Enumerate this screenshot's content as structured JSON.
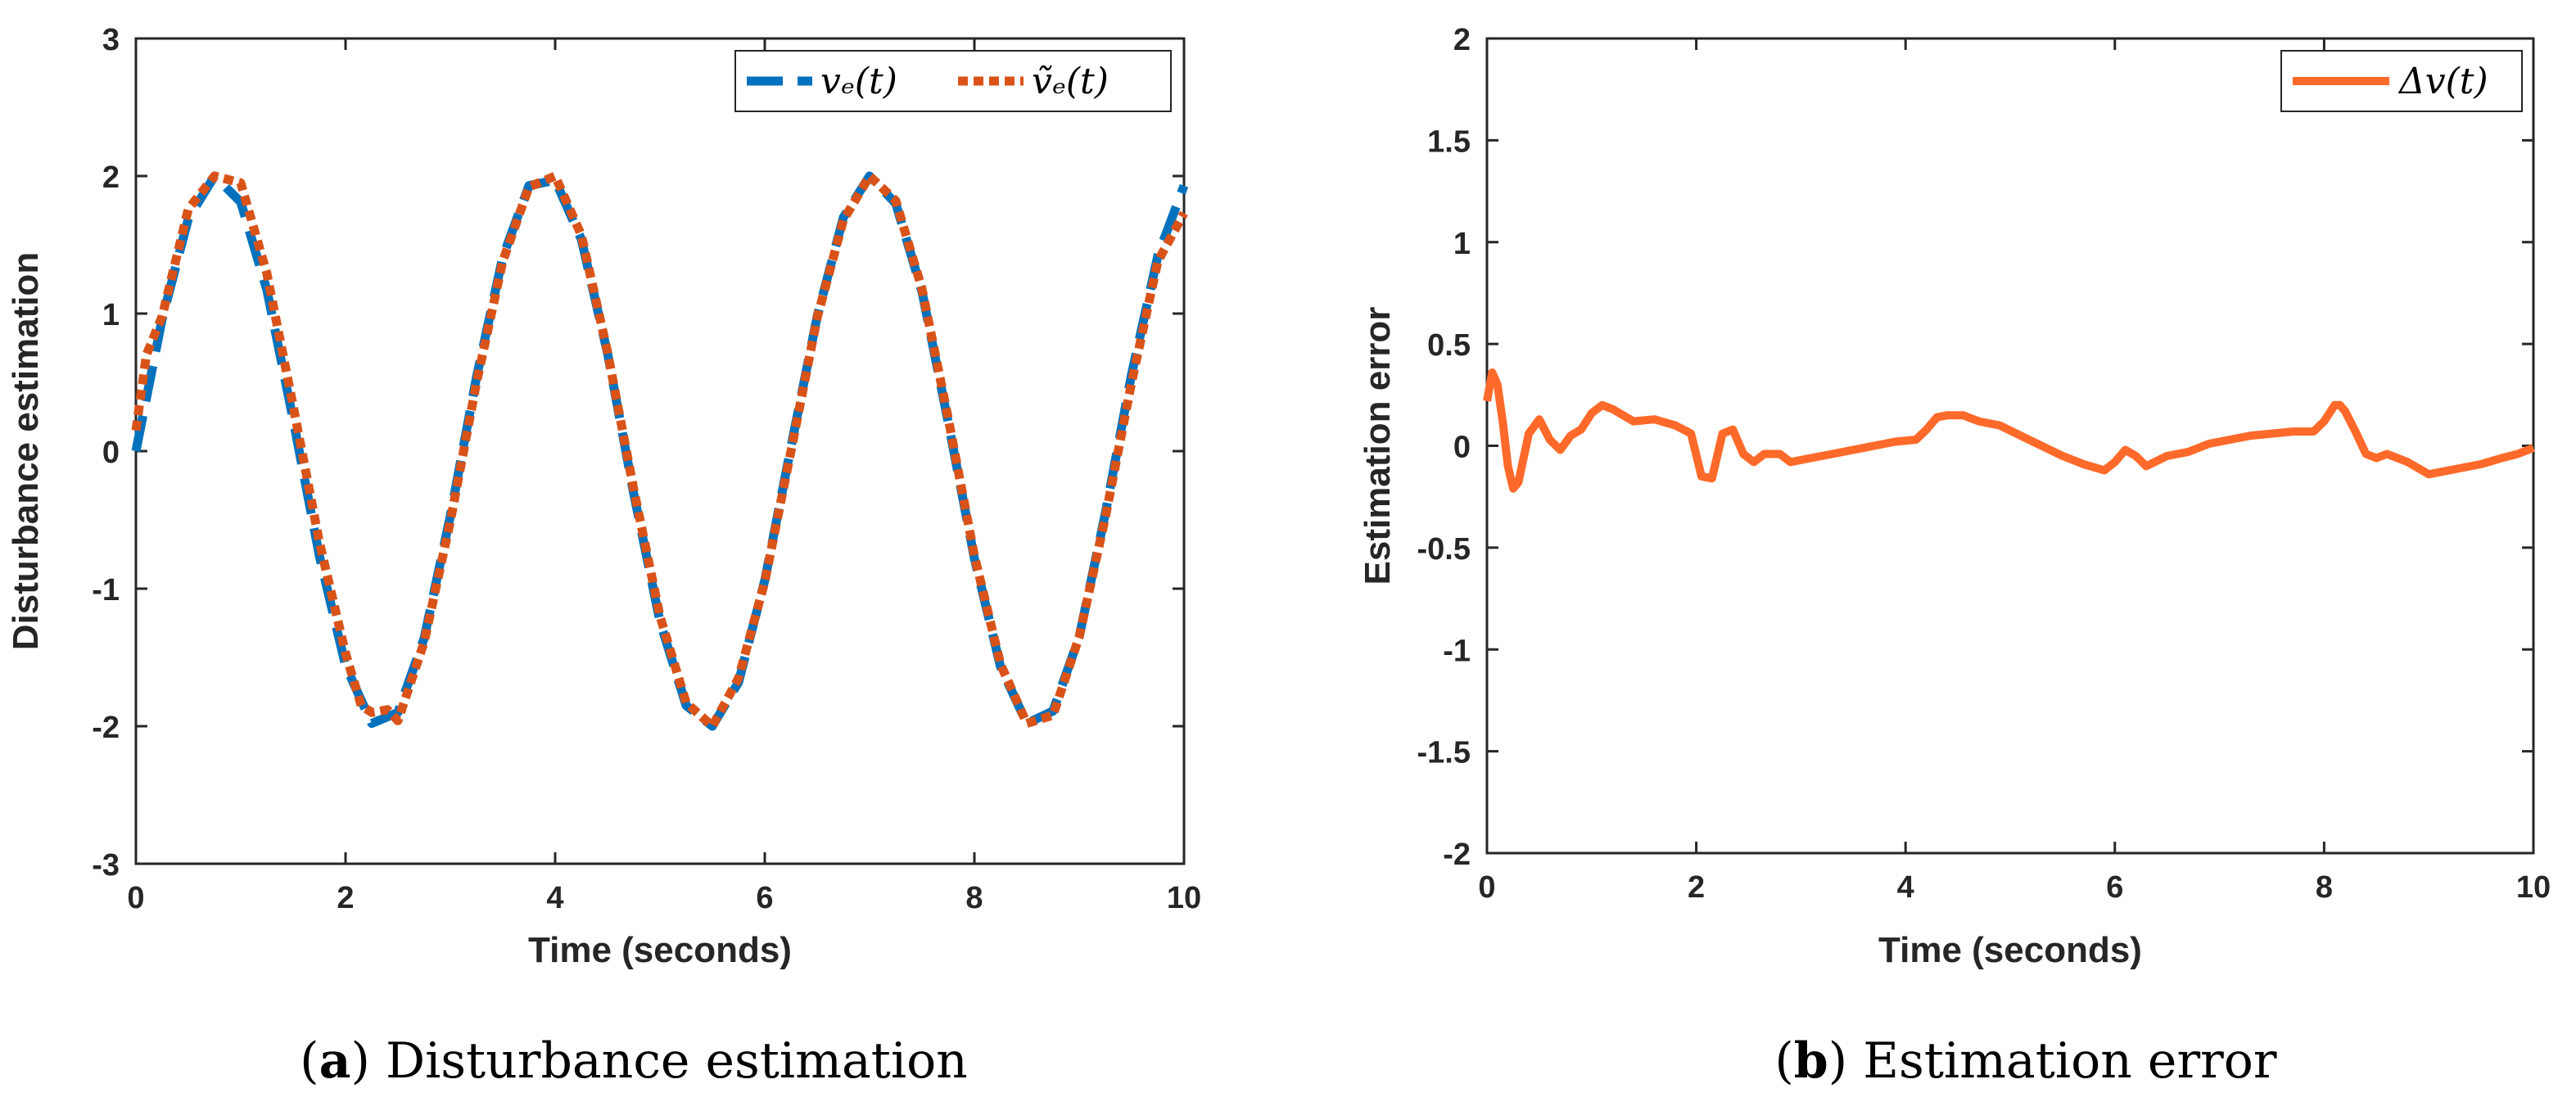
{
  "chart_data": [
    {
      "type": "line",
      "caption_label": "a",
      "caption_text": "Disturbance estimation",
      "xlabel": "Time (seconds)",
      "ylabel": "Disturbance estimation",
      "xlim": [
        0,
        10
      ],
      "ylim": [
        -3,
        3
      ],
      "xticks": [
        "0",
        "2",
        "4",
        "6",
        "8",
        "10"
      ],
      "yticks": [
        "3",
        "2",
        "1",
        "0",
        "-1",
        "-2",
        "-3"
      ],
      "legend_position": "top-right",
      "series": [
        {
          "name": "v_e(t)",
          "legend_label": "vₑ(t)",
          "style": "dashed",
          "color": "#0072BD",
          "x": [
            0,
            0.25,
            0.5,
            0.75,
            1.0,
            1.25,
            1.5,
            1.75,
            2.0,
            2.25,
            2.5,
            2.75,
            3.0,
            3.25,
            3.5,
            3.75,
            4.0,
            4.25,
            4.5,
            4.75,
            5.0,
            5.25,
            5.5,
            5.75,
            6.0,
            6.25,
            6.5,
            6.75,
            7.0,
            7.25,
            7.5,
            7.75,
            8.0,
            8.25,
            8.5,
            8.75,
            9.0,
            9.25,
            9.5,
            9.75,
            10.0
          ],
          "y": [
            0.0,
            0.96,
            1.69,
            2.0,
            1.81,
            1.17,
            0.23,
            -0.76,
            -1.56,
            -1.98,
            -1.9,
            -1.36,
            -0.47,
            0.54,
            1.41,
            1.93,
            1.97,
            1.54,
            0.71,
            -0.31,
            -1.24,
            -1.85,
            -2.0,
            -1.68,
            -0.94,
            0.03,
            0.98,
            1.7,
            2.0,
            1.8,
            1.16,
            0.21,
            -0.78,
            -1.57,
            -1.98,
            -1.89,
            -1.35,
            -0.45,
            0.56,
            1.42,
            1.93
          ]
        },
        {
          "name": "tilde v_e(t)",
          "legend_label": "ṽₑ(t)",
          "style": "dotted",
          "color": "#D95319",
          "x": [
            0,
            0.1,
            0.25,
            0.5,
            0.75,
            1.0,
            1.25,
            1.5,
            1.75,
            2.0,
            2.15,
            2.25,
            2.4,
            2.5,
            2.75,
            3.0,
            3.25,
            3.5,
            3.75,
            4.0,
            4.25,
            4.5,
            4.75,
            5.0,
            5.25,
            5.5,
            5.75,
            6.0,
            6.25,
            6.5,
            6.75,
            7.0,
            7.25,
            7.5,
            7.75,
            8.0,
            8.25,
            8.5,
            8.75,
            9.0,
            9.25,
            9.5,
            9.75,
            10.0
          ],
          "y": [
            0.15,
            0.7,
            0.98,
            1.76,
            2.0,
            1.95,
            1.29,
            0.33,
            -0.66,
            -1.47,
            -1.85,
            -1.9,
            -1.88,
            -1.96,
            -1.39,
            -0.51,
            0.5,
            1.38,
            1.92,
            2.0,
            1.57,
            0.72,
            -0.28,
            -1.2,
            -1.83,
            -2.0,
            -1.65,
            -0.95,
            0.0,
            0.97,
            1.68,
            2.0,
            1.82,
            1.18,
            0.24,
            -0.76,
            -1.55,
            -1.98,
            -1.92,
            -1.35,
            -0.48,
            0.5,
            1.38,
            1.73
          ]
        }
      ]
    },
    {
      "type": "line",
      "caption_label": "b",
      "caption_text": "Estimation error",
      "xlabel": "Time (seconds)",
      "ylabel": "Estimation error",
      "xlim": [
        0,
        10
      ],
      "ylim": [
        -2,
        2
      ],
      "xticks": [
        "0",
        "2",
        "4",
        "6",
        "8",
        "10"
      ],
      "yticks": [
        "2",
        "1.5",
        "1",
        "0.5",
        "0",
        "-0.5",
        "-1",
        "-1.5",
        "-2"
      ],
      "legend_position": "top-right",
      "series": [
        {
          "name": "Delta v(t)",
          "legend_label": "Δv(t)",
          "style": "solid",
          "color": "#FF6A2A",
          "x": [
            0,
            0.05,
            0.1,
            0.15,
            0.2,
            0.25,
            0.3,
            0.4,
            0.5,
            0.6,
            0.7,
            0.8,
            0.9,
            1.0,
            1.1,
            1.2,
            1.4,
            1.6,
            1.8,
            1.95,
            2.05,
            2.15,
            2.25,
            2.35,
            2.45,
            2.55,
            2.65,
            2.8,
            2.9,
            3.1,
            3.3,
            3.6,
            3.9,
            4.1,
            4.2,
            4.3,
            4.4,
            4.55,
            4.7,
            4.9,
            5.1,
            5.3,
            5.5,
            5.7,
            5.9,
            6.0,
            6.1,
            6.2,
            6.3,
            6.5,
            6.7,
            6.9,
            7.1,
            7.3,
            7.5,
            7.7,
            7.9,
            8.0,
            8.1,
            8.15,
            8.2,
            8.3,
            8.4,
            8.5,
            8.6,
            8.8,
            9.0,
            9.1,
            9.3,
            9.5,
            9.7,
            9.85,
            10.0
          ],
          "y": [
            0.22,
            0.36,
            0.3,
            0.12,
            -0.1,
            -0.21,
            -0.18,
            0.06,
            0.13,
            0.03,
            -0.02,
            0.05,
            0.08,
            0.16,
            0.2,
            0.18,
            0.12,
            0.13,
            0.1,
            0.06,
            -0.15,
            -0.16,
            0.06,
            0.08,
            -0.04,
            -0.08,
            -0.04,
            -0.04,
            -0.08,
            -0.06,
            -0.04,
            -0.01,
            0.02,
            0.03,
            0.08,
            0.14,
            0.15,
            0.15,
            0.12,
            0.1,
            0.05,
            0.0,
            -0.05,
            -0.09,
            -0.12,
            -0.08,
            -0.02,
            -0.05,
            -0.1,
            -0.05,
            -0.03,
            0.01,
            0.03,
            0.05,
            0.06,
            0.07,
            0.07,
            0.12,
            0.2,
            0.2,
            0.17,
            0.07,
            -0.04,
            -0.06,
            -0.04,
            -0.08,
            -0.14,
            -0.13,
            -0.11,
            -0.09,
            -0.06,
            -0.04,
            -0.01
          ]
        }
      ]
    }
  ]
}
